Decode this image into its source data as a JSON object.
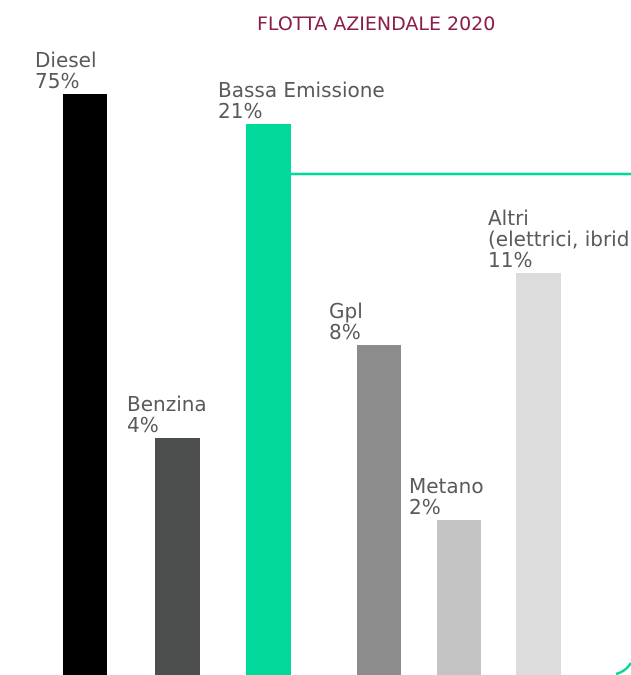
{
  "chart_data": {
    "type": "bar",
    "title": "FLOTTA AZIENDALE 2020",
    "categories": [
      "Diesel",
      "Benzina",
      "Bassa Emissione",
      "Gpl",
      "Metano",
      "Altri"
    ],
    "category_sublabels": [
      "",
      "",
      "",
      "",
      "",
      "(elettrici, ibridi...)"
    ],
    "value_labels": [
      "75%",
      "4%",
      "21%",
      "8%",
      "2%",
      "11%"
    ],
    "values": [
      75,
      4,
      21,
      8,
      2,
      11
    ],
    "group": {
      "name": "Bassa Emissione",
      "members": [
        "Gpl",
        "Metano",
        "Altri"
      ],
      "total": 21
    },
    "xlabel": "",
    "ylabel": "",
    "colors": {
      "title": "#8b1c4d",
      "labels": "#5a5a5a",
      "bars": [
        "#000000",
        "#4d4f4e",
        "#00d99a",
        "#8c8c8c",
        "#c4c4c4",
        "#dcdcdc"
      ],
      "bracket": "#00d99a"
    }
  }
}
